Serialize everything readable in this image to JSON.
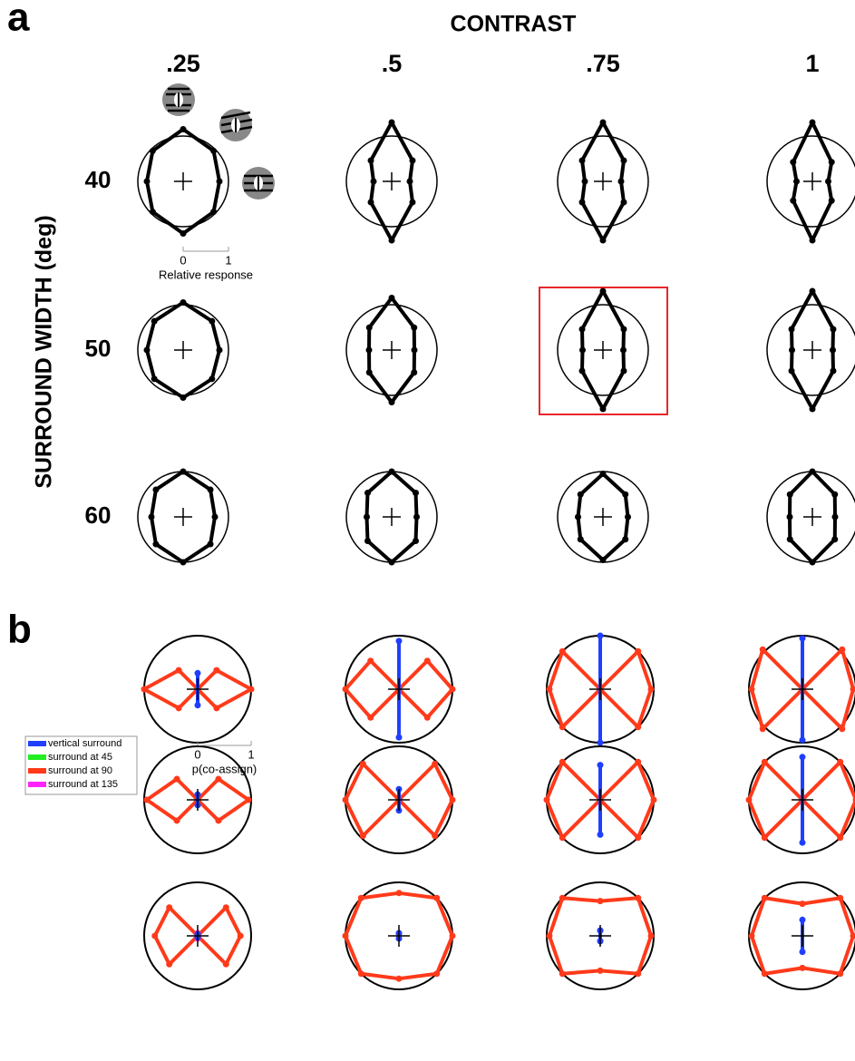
{
  "panel_a": {
    "label": "a",
    "title": "CONTRAST",
    "y_title": "SURROUND WIDTH (deg)",
    "columns": [
      ".25",
      ".5",
      ".75",
      "1"
    ],
    "rows": [
      "40",
      "50",
      "60"
    ],
    "angles": [
      0,
      45,
      90,
      135,
      180,
      225,
      270,
      315
    ],
    "scale_label": "Relative response",
    "scale_ticks": [
      0,
      1
    ],
    "plots": [
      [
        [
          0.8,
          0.95,
          1.15,
          0.95,
          0.8,
          0.95,
          1.15,
          0.95
        ],
        [
          0.4,
          0.65,
          1.3,
          0.65,
          0.4,
          0.65,
          1.3,
          0.65
        ],
        [
          0.4,
          0.65,
          1.3,
          0.65,
          0.4,
          0.65,
          1.3,
          0.65
        ],
        [
          0.35,
          0.6,
          1.3,
          0.6,
          0.35,
          0.6,
          1.3,
          0.6
        ]
      ],
      [
        [
          0.8,
          0.9,
          1.05,
          0.9,
          0.8,
          0.9,
          1.05,
          0.9
        ],
        [
          0.5,
          0.7,
          1.15,
          0.7,
          0.5,
          0.7,
          1.15,
          0.7
        ],
        [
          0.45,
          0.65,
          1.3,
          0.65,
          0.45,
          0.65,
          1.3,
          0.65
        ],
        [
          0.45,
          0.65,
          1.3,
          0.65,
          0.45,
          0.65,
          1.3,
          0.65
        ]
      ],
      [
        [
          0.7,
          0.85,
          1.0,
          0.85,
          0.7,
          0.85,
          1.0,
          0.85
        ],
        [
          0.55,
          0.75,
          1.0,
          0.75,
          0.55,
          0.75,
          1.0,
          0.75
        ],
        [
          0.55,
          0.7,
          0.95,
          0.7,
          0.55,
          0.7,
          0.95,
          0.7
        ],
        [
          0.5,
          0.7,
          1.0,
          0.7,
          0.5,
          0.7,
          1.0,
          0.7
        ]
      ]
    ]
  },
  "panel_b": {
    "label": "b",
    "angles": [
      0,
      45,
      90,
      135,
      180,
      225,
      270,
      315
    ],
    "scale_label": "p(co-assign)",
    "scale_ticks": [
      0,
      1
    ],
    "legend": [
      {
        "name": "vertical surround",
        "color": "#1f3fff"
      },
      {
        "name": "surround at 45",
        "color": "#22ee22"
      },
      {
        "name": "surround at 90",
        "color": "#ff3a1a"
      },
      {
        "name": "surround at 135",
        "color": "#ff22ff"
      }
    ],
    "plots": [
      [
        [
          [
            0,
            0,
            0.3,
            0,
            0,
            0,
            0.3,
            0
          ],
          [
            0,
            0,
            0,
            0,
            0,
            0,
            0,
            0
          ],
          [
            1.0,
            0.5,
            0,
            0.5,
            1.0,
            0.5,
            0,
            0.5
          ],
          [
            0,
            0,
            0,
            0,
            0,
            0,
            0,
            0
          ]
        ],
        [
          [
            0,
            0,
            0.9,
            0,
            0,
            0,
            0.9,
            0
          ],
          [
            0,
            0,
            0,
            0,
            0,
            0,
            0,
            0
          ],
          [
            1.0,
            0.75,
            0,
            0.75,
            1.0,
            0.75,
            0,
            0.75
          ],
          [
            0,
            0,
            0,
            0,
            0,
            0,
            0,
            0
          ]
        ],
        [
          [
            0,
            0,
            1.0,
            0,
            0,
            0,
            1.0,
            0
          ],
          [
            0,
            0,
            0,
            0,
            0,
            0,
            0,
            0
          ],
          [
            0.95,
            1.0,
            0,
            1.0,
            0.95,
            1.0,
            0,
            1.0
          ],
          [
            0,
            0,
            0,
            0,
            0,
            0,
            0,
            0
          ]
        ],
        [
          [
            0,
            0,
            0.95,
            0,
            0,
            0,
            0.95,
            0
          ],
          [
            0,
            0,
            0,
            0,
            0,
            0,
            0,
            0
          ],
          [
            0.95,
            1.05,
            0,
            1.05,
            0.95,
            1.05,
            0,
            1.05
          ],
          [
            0,
            0,
            0,
            0,
            0,
            0,
            0,
            0
          ]
        ]
      ],
      [
        [
          [
            0,
            0,
            0.1,
            0,
            0,
            0,
            0.1,
            0
          ],
          [
            0,
            0,
            0,
            0,
            0,
            0,
            0,
            0
          ],
          [
            0.95,
            0.55,
            0,
            0.55,
            0.95,
            0.55,
            0,
            0.55
          ],
          [
            0,
            0,
            0,
            0,
            0,
            0,
            0,
            0
          ]
        ],
        [
          [
            0,
            0,
            0.2,
            0,
            0,
            0,
            0.2,
            0
          ],
          [
            0,
            0,
            0,
            0,
            0,
            0,
            0,
            0
          ],
          [
            1.0,
            0.95,
            0,
            0.95,
            1.0,
            0.95,
            0,
            0.95
          ],
          [
            0,
            0,
            0,
            0,
            0,
            0,
            0,
            0
          ]
        ],
        [
          [
            0,
            0,
            0.65,
            0,
            0,
            0,
            0.65,
            0
          ],
          [
            0,
            0,
            0,
            0,
            0,
            0,
            0,
            0
          ],
          [
            1.0,
            1.0,
            0,
            1.0,
            1.0,
            1.0,
            0,
            1.0
          ],
          [
            0,
            0,
            0,
            0,
            0,
            0,
            0,
            0
          ]
        ],
        [
          [
            0,
            0,
            0.8,
            0,
            0,
            0,
            0.8,
            0
          ],
          [
            0,
            0,
            0,
            0,
            0,
            0,
            0,
            0
          ],
          [
            1.0,
            1.0,
            0,
            1.0,
            1.0,
            1.0,
            0,
            1.0
          ],
          [
            0,
            0,
            0,
            0,
            0,
            0,
            0,
            0
          ]
        ]
      ],
      [
        [
          [
            0,
            0,
            0.03,
            0,
            0,
            0,
            0.03,
            0
          ],
          [
            0,
            0,
            0,
            0,
            0,
            0,
            0,
            0
          ],
          [
            0.8,
            0.75,
            0,
            0.75,
            0.8,
            0.75,
            0,
            0.75
          ],
          [
            0,
            0,
            0.05,
            0,
            0,
            0,
            0.05,
            0
          ]
        ],
        [
          [
            0,
            0,
            0.05,
            0,
            0,
            0,
            0.05,
            0
          ],
          [
            0,
            0,
            0,
            0,
            0,
            0,
            0,
            0
          ],
          [
            1.0,
            1.0,
            0.8,
            1.0,
            1.0,
            1.0,
            0.8,
            1.0
          ],
          [
            0,
            0,
            0.05,
            0,
            0,
            0,
            0.05,
            0
          ]
        ],
        [
          [
            0,
            0,
            0.1,
            0,
            0,
            0,
            0.1,
            0
          ],
          [
            0,
            0,
            0,
            0,
            0,
            0,
            0,
            0
          ],
          [
            0.95,
            1.0,
            0.65,
            1.0,
            0.95,
            1.0,
            0.65,
            1.0
          ],
          [
            0,
            0,
            0.1,
            0,
            0,
            0,
            0.1,
            0
          ]
        ],
        [
          [
            0,
            0,
            0.3,
            0,
            0,
            0,
            0.3,
            0
          ],
          [
            0,
            0,
            0,
            0,
            0,
            0,
            0,
            0
          ],
          [
            0.95,
            1.0,
            0.6,
            1.0,
            0.95,
            1.0,
            0.6,
            1.0
          ],
          [
            0,
            0,
            0,
            0,
            0,
            0,
            0,
            0
          ]
        ]
      ]
    ]
  }
}
